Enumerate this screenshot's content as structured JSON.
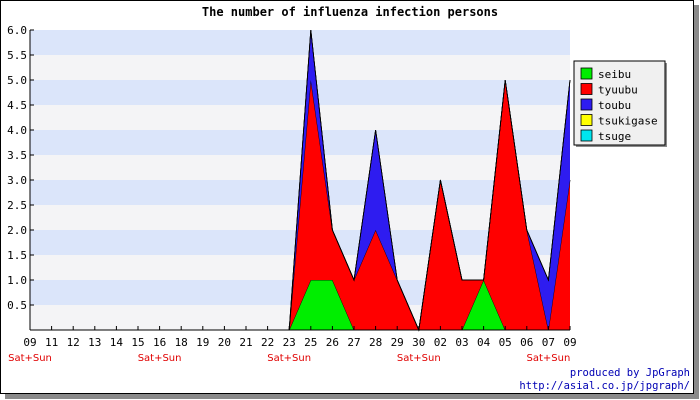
{
  "chart_data": {
    "type": "area",
    "title": "The number of influenza infection persons",
    "stacked": true,
    "categories": [
      "09",
      "11",
      "12",
      "13",
      "14",
      "15",
      "16",
      "18",
      "19",
      "20",
      "21",
      "22",
      "23",
      "25",
      "26",
      "27",
      "28",
      "29",
      "30",
      "02",
      "03",
      "04",
      "05",
      "06",
      "07",
      "09"
    ],
    "weekend_labels": [
      {
        "index": 0,
        "text": "Sat+Sun"
      },
      {
        "index": 6,
        "text": "Sat+Sun"
      },
      {
        "index": 12,
        "text": "Sat+Sun"
      },
      {
        "index": 18,
        "text": "Sat+Sun"
      },
      {
        "index": 24,
        "text": "Sat+Sun"
      }
    ],
    "ylim": [
      0,
      6.0
    ],
    "yticks": [
      "0.5",
      "1.0",
      "1.5",
      "2.0",
      "2.5",
      "3.0",
      "3.5",
      "4.0",
      "4.5",
      "5.0",
      "5.5",
      "6.0"
    ],
    "series": [
      {
        "name": "seibu",
        "color": "#00ee00",
        "values": [
          0,
          0,
          0,
          0,
          0,
          0,
          0,
          0,
          0,
          0,
          0,
          0,
          0,
          1,
          1,
          0,
          0,
          0,
          0,
          0,
          0,
          1,
          0,
          0,
          0,
          0
        ]
      },
      {
        "name": "tyuubu",
        "color": "#ff0000",
        "values": [
          0,
          0,
          0,
          0,
          0,
          0,
          0,
          0,
          0,
          0,
          0,
          0,
          0,
          4,
          1,
          1,
          2,
          1,
          0,
          3,
          1,
          0,
          5,
          2,
          0,
          3
        ]
      },
      {
        "name": "toubu",
        "color": "#2e1cf0",
        "values": [
          0,
          0,
          0,
          0,
          0,
          0,
          0,
          0,
          0,
          0,
          0,
          0,
          0,
          1,
          0,
          0,
          2,
          0,
          0,
          0,
          0,
          0,
          0,
          0,
          1,
          2
        ]
      },
      {
        "name": "tsukigase",
        "color": "#ffff00",
        "values": [
          0,
          0,
          0,
          0,
          0,
          0,
          0,
          0,
          0,
          0,
          0,
          0,
          0,
          0,
          0,
          0,
          0,
          0,
          0,
          0,
          0,
          0,
          0,
          0,
          0,
          0
        ]
      },
      {
        "name": "tsuge",
        "color": "#00e5ee",
        "values": [
          0,
          0,
          0,
          0,
          0,
          0,
          0,
          0,
          0,
          0,
          0,
          0,
          0,
          0,
          0,
          0,
          0,
          0,
          0,
          0,
          0,
          0,
          0,
          0,
          0,
          0
        ]
      }
    ],
    "grid": true,
    "legend_position": "right"
  },
  "credits": {
    "line1": "produced by JpGraph",
    "line2": "http://asial.co.jp/jpgraph/"
  }
}
